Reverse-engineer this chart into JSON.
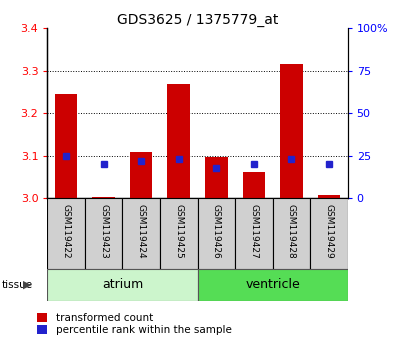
{
  "title": "GDS3625 / 1375779_at",
  "samples": [
    "GSM119422",
    "GSM119423",
    "GSM119424",
    "GSM119425",
    "GSM119426",
    "GSM119427",
    "GSM119428",
    "GSM119429"
  ],
  "red_values": [
    3.245,
    3.003,
    3.108,
    3.27,
    3.098,
    3.062,
    3.315,
    3.008
  ],
  "blue_pct": [
    25,
    20,
    22,
    23,
    18,
    20,
    23,
    20
  ],
  "ylim_left": [
    3.0,
    3.4
  ],
  "ylim_right": [
    0,
    100
  ],
  "yticks_left": [
    3.0,
    3.1,
    3.2,
    3.3,
    3.4
  ],
  "yticks_right": [
    0,
    25,
    50,
    75,
    100
  ],
  "ytick_labels_right": [
    "0",
    "25",
    "50",
    "75",
    "100%"
  ],
  "bar_width": 0.6,
  "red_color": "#cc0000",
  "blue_color": "#2222cc",
  "atrium_color": "#ccf5cc",
  "ventricle_color": "#55dd55",
  "sample_bg_color": "#d0d0d0",
  "base_value": 3.0,
  "legend_red": "transformed count",
  "legend_blue": "percentile rank within the sample",
  "atrium_samples": [
    0,
    1,
    2,
    3
  ],
  "ventricle_samples": [
    4,
    5,
    6,
    7
  ]
}
